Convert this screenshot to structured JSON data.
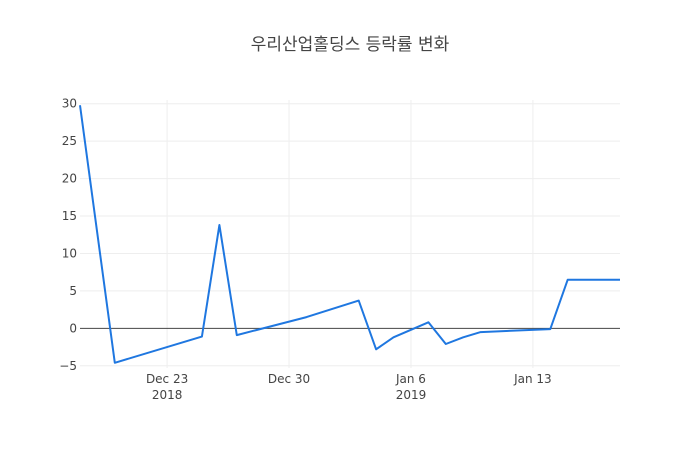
{
  "chart_data": {
    "type": "line",
    "title": "우리산업홀딩스 등락률 변화",
    "xlabel": "",
    "ylabel": "",
    "x_axis": {
      "type": "date",
      "range": [
        "2018-12-18",
        "2019-01-18"
      ],
      "ticks": [
        {
          "date": "2018-12-23",
          "label": "Dec 23",
          "sublabel": "2018"
        },
        {
          "date": "2018-12-30",
          "label": "Dec 30",
          "sublabel": ""
        },
        {
          "date": "2019-01-06",
          "label": "Jan 6",
          "sublabel": "2019"
        },
        {
          "date": "2019-01-13",
          "label": "Jan 13",
          "sublabel": ""
        }
      ]
    },
    "y_axis": {
      "range": [
        -5.3,
        30.5
      ],
      "ticks": [
        -5,
        0,
        5,
        10,
        15,
        20,
        25,
        30
      ],
      "tick_labels": [
        "−5",
        "0",
        "5",
        "10",
        "15",
        "20",
        "25",
        "30"
      ]
    },
    "grid": true,
    "zero_line": true,
    "line_color": "#1f77e0",
    "series": [
      {
        "name": "",
        "x": [
          "2018-12-18",
          "2018-12-20",
          "2018-12-25",
          "2018-12-26",
          "2018-12-27",
          "2018-12-31",
          "2019-01-03",
          "2019-01-04",
          "2019-01-05",
          "2019-01-07",
          "2019-01-08",
          "2019-01-09",
          "2019-01-10",
          "2019-01-14",
          "2019-01-15",
          "2019-01-18"
        ],
        "y": [
          29.8,
          -4.6,
          -1.1,
          13.8,
          -0.9,
          1.5,
          3.7,
          -2.8,
          -1.2,
          0.8,
          -2.1,
          -1.2,
          -0.5,
          -0.1,
          6.5,
          6.5
        ]
      }
    ]
  }
}
